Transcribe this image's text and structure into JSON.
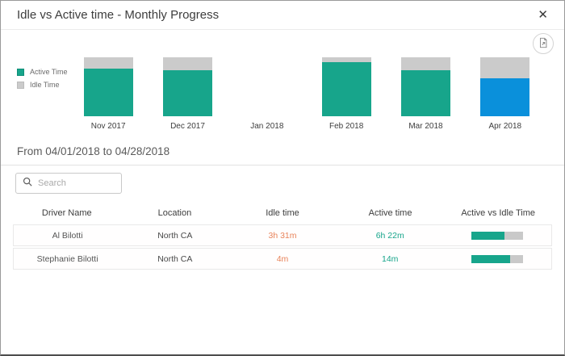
{
  "header": {
    "title": "Idle vs Active time - Monthly Progress",
    "close_glyph": "✕"
  },
  "colors": {
    "active": "#17a58b",
    "idle_bar": "#cbcbcb",
    "selected": "#0a90db",
    "idle_text": "#e8835a",
    "active_text": "#17a58b"
  },
  "legend": {
    "items": [
      {
        "label": "Active Time",
        "color": "#17a58b"
      },
      {
        "label": "Idle Time",
        "color": "#cbcbcb"
      }
    ]
  },
  "chart_data": {
    "type": "bar",
    "stacked": true,
    "categories": [
      "Nov 2017",
      "Dec 2017",
      "Jan 2018",
      "Feb 2018",
      "Mar 2018",
      "Apr 2018"
    ],
    "series": [
      {
        "name": "Active Time",
        "values": [
          81,
          78,
          null,
          92,
          78,
          65
        ]
      },
      {
        "name": "Idle Time",
        "values": [
          19,
          22,
          null,
          8,
          22,
          35
        ]
      }
    ],
    "value_unit": "percent of stacked bar height (no y-axis shown)",
    "selected_category": "Apr 2018",
    "selected_active_color": "#0a90db",
    "legend_position": "left",
    "grid": false
  },
  "period": {
    "label": "From 04/01/2018 to 04/28/2018"
  },
  "search": {
    "placeholder": "Search"
  },
  "table": {
    "columns": [
      "Driver Name",
      "Location",
      "Idle time",
      "Active time",
      "Active vs Idle Time"
    ],
    "rows": [
      {
        "driver": "Al Bilotti",
        "location": "North CA",
        "idle": "3h 31m",
        "active": "6h 22m",
        "active_pct": 63
      },
      {
        "driver": "Stephanie Bilotti",
        "location": "North CA",
        "idle": "4m",
        "active": "14m",
        "active_pct": 75
      }
    ]
  }
}
